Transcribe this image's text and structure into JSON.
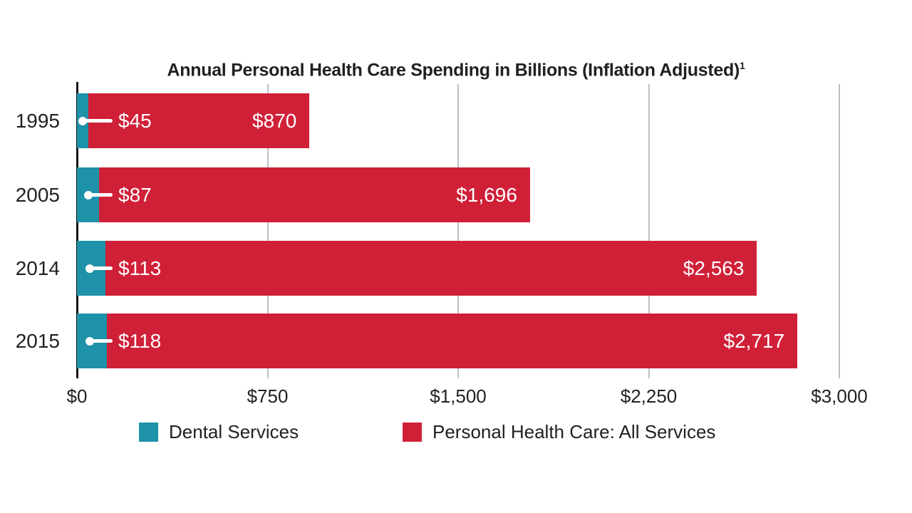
{
  "title": {
    "text": "Annual Personal Health Care Spending in Billions (Inflation Adjusted)",
    "superscript": "1"
  },
  "colors": {
    "dental": "#1e92a8",
    "all_services": "#d02038",
    "gridline": "#bdbfc1",
    "axis_line": "#131313",
    "text": "#231f20",
    "value_text": "#ffffff",
    "background": "#ffffff"
  },
  "chart_data": {
    "type": "bar",
    "orientation": "horizontal",
    "stacked": true,
    "title": "Annual Personal Health Care Spending in Billions (Inflation Adjusted)¹",
    "categories": [
      "1995",
      "2005",
      "2014",
      "2015"
    ],
    "series": [
      {
        "name": "Dental Services",
        "color": "#1e92a8",
        "values": [
          45,
          87,
          113,
          118
        ],
        "labels": [
          "$45",
          "$87",
          "$113",
          "$118"
        ]
      },
      {
        "name": "Personal Health Care: All Services",
        "color": "#d02038",
        "values": [
          870,
          1696,
          2563,
          2717
        ],
        "labels": [
          "$870",
          "$1,696",
          "$2,563",
          "$2,717"
        ]
      }
    ],
    "xlabel": "",
    "ylabel": "",
    "xlim": [
      0,
      3000
    ],
    "x_ticks": {
      "values": [
        0,
        750,
        1500,
        2250,
        3000
      ],
      "labels": [
        "$0",
        "$750",
        "$1,500",
        "$2,250",
        "$3,000"
      ]
    },
    "grid": true,
    "legend_position": "bottom"
  },
  "legend": {
    "items": [
      {
        "label": "Dental Services",
        "color": "#1e92a8"
      },
      {
        "label": "Personal Health Care: All Services",
        "color": "#d02038"
      }
    ]
  }
}
